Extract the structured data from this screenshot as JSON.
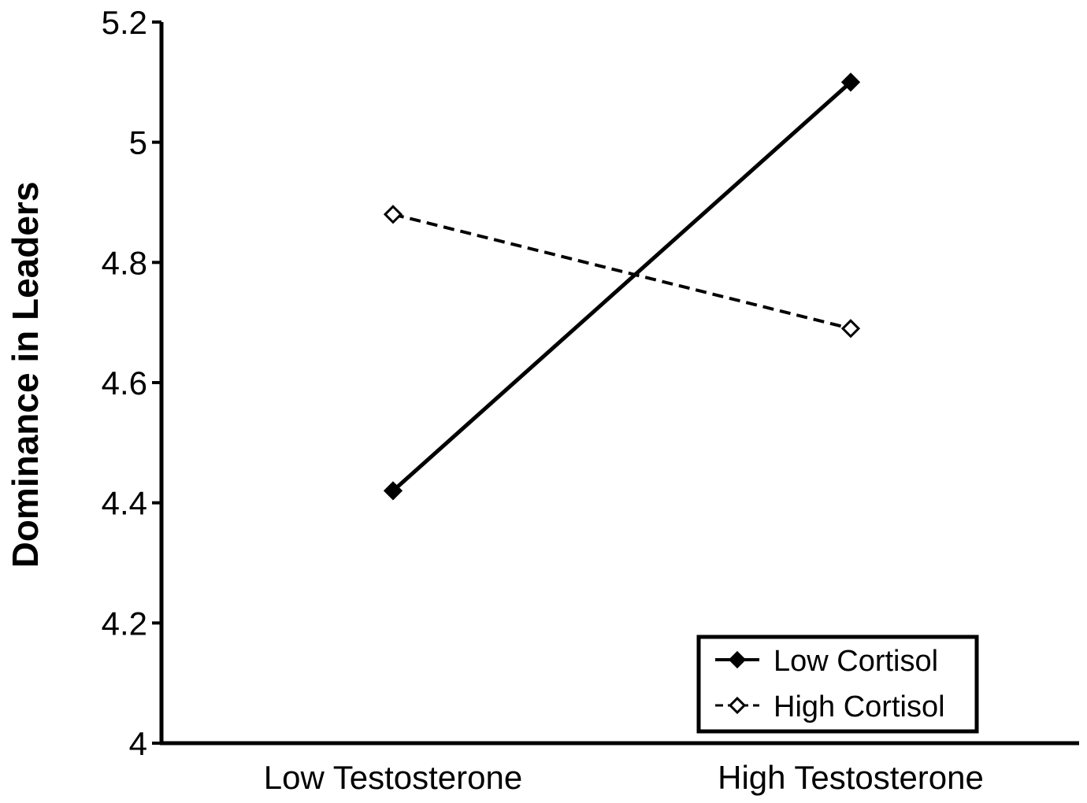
{
  "chart_data": {
    "type": "line",
    "title": "",
    "xlabel": "",
    "ylabel": "Dominance in Leaders",
    "categories": [
      "Low Testosterone",
      "High Testosterone"
    ],
    "ylim": [
      4,
      5.2
    ],
    "yticks": [
      "4",
      "4.2",
      "4.4",
      "4.6",
      "4.8",
      "5",
      "5.2"
    ],
    "grid": false,
    "legend_position": "bottom-right",
    "series": [
      {
        "name": "Low Cortisol",
        "values": [
          4.42,
          5.1
        ],
        "line_style": "solid",
        "marker": "filled-diamond",
        "color": "#000000"
      },
      {
        "name": "High Cortisol",
        "values": [
          4.88,
          4.69
        ],
        "line_style": "dashed",
        "marker": "open-diamond",
        "color": "#000000"
      }
    ]
  }
}
